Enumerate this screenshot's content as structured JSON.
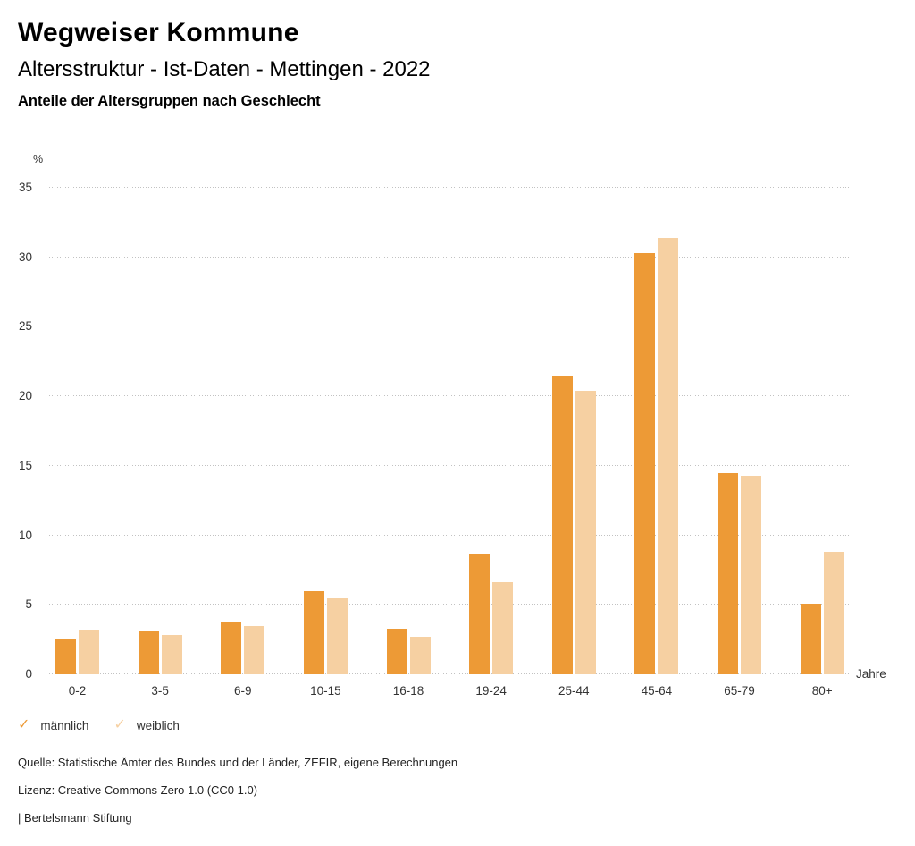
{
  "header": {
    "title": "Wegweiser Kommune",
    "subtitle": "Altersstruktur - Ist-Daten - Mettingen - 2022",
    "chart_heading": "Anteile der Altersgruppen nach Geschlecht"
  },
  "chart_data": {
    "type": "bar",
    "title": "Anteile der Altersgruppen nach Geschlecht",
    "categories": [
      "0-2",
      "3-5",
      "6-9",
      "10-15",
      "16-18",
      "19-24",
      "25-44",
      "45-64",
      "65-79",
      "80+"
    ],
    "series": [
      {
        "name": "männlich",
        "color": "#ED9A36",
        "values": [
          2.6,
          3.1,
          3.8,
          6.0,
          3.3,
          8.7,
          21.4,
          30.3,
          14.5,
          5.1
        ]
      },
      {
        "name": "weiblich",
        "color": "#F6D0A2",
        "values": [
          3.2,
          2.8,
          3.5,
          5.5,
          2.7,
          6.6,
          20.4,
          31.4,
          14.3,
          8.8
        ]
      }
    ],
    "xlabel": "Jahre",
    "ylabel": "%",
    "ylim": [
      0,
      35
    ],
    "ytick_step": 5,
    "grid": "horizontal-dotted",
    "legend_position": "bottom-left"
  },
  "legend": {
    "items": [
      {
        "label": "männlich",
        "color": "#ED9A36",
        "icon": "check-icon"
      },
      {
        "label": "weiblich",
        "color": "#F6D0A2",
        "icon": "check-icon"
      }
    ]
  },
  "footer": {
    "source": "Quelle: Statistische Ämter des Bundes und der Länder, ZEFIR, eigene Berechnungen",
    "license": "Lizenz: Creative Commons Zero 1.0 (CC0 1.0)",
    "attribution": "| Bertelsmann Stiftung"
  }
}
